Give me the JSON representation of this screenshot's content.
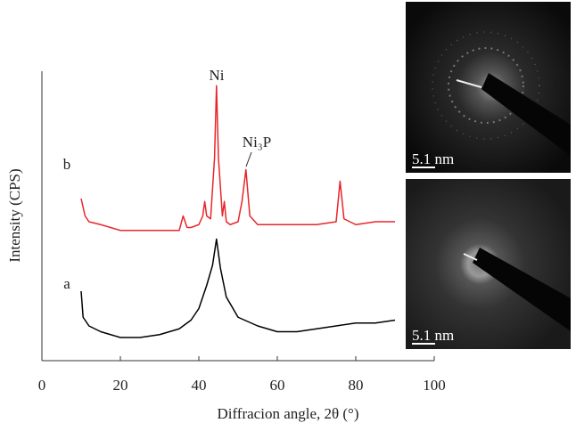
{
  "chart_data": {
    "type": "line",
    "xlabel": "Diffracion angle, 2θ (°)",
    "ylabel": "Intensity (CPS)",
    "xlim": [
      0,
      100
    ],
    "xticks": [
      0,
      20,
      40,
      60,
      80,
      100
    ],
    "ylim": [
      0,
      100
    ],
    "annotations": [
      {
        "text": "Ni"
      },
      {
        "text": "Ni₃P"
      },
      {
        "text": "b"
      },
      {
        "text": "a"
      }
    ],
    "series": [
      {
        "name": "b",
        "color": "#e8262a",
        "x": [
          10,
          11,
          12,
          15,
          20,
          25,
          30,
          35,
          36,
          37,
          38,
          40,
          41,
          41.5,
          42,
          43,
          44,
          44.5,
          45,
          46,
          46.5,
          47,
          48,
          50,
          51,
          52,
          53,
          55,
          60,
          65,
          70,
          75,
          76,
          77,
          80,
          85,
          90
        ],
        "values": [
          56,
          50,
          48,
          47,
          45,
          45,
          45,
          45,
          50,
          46,
          46,
          47,
          50,
          55,
          50,
          49,
          70,
          95,
          70,
          50,
          55,
          48,
          47,
          48,
          55,
          66,
          50,
          47,
          47,
          47,
          47,
          48,
          62,
          49,
          47,
          48,
          48
        ]
      },
      {
        "name": "a",
        "color": "#000000",
        "x": [
          10,
          10.5,
          12,
          15,
          20,
          25,
          30,
          35,
          38,
          40,
          42,
          43.5,
          44.5,
          45.5,
          47,
          50,
          55,
          60,
          65,
          70,
          75,
          80,
          85,
          90
        ],
        "values": [
          24,
          15,
          12,
          10,
          8,
          8,
          9,
          11,
          14,
          18,
          26,
          33,
          42,
          32,
          22,
          15,
          12,
          10,
          10,
          11,
          12,
          13,
          13,
          14
        ]
      }
    ]
  },
  "images": [
    {
      "scale_label": "5.1 nm"
    },
    {
      "scale_label": "5.1 nm"
    }
  ]
}
